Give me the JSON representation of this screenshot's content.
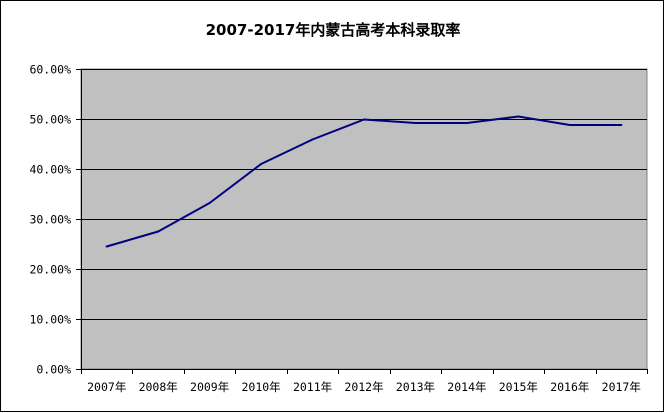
{
  "chart_data": {
    "type": "line",
    "title": "2007-2017年内蒙古高考本科录取率",
    "xlabel": "",
    "ylabel": "",
    "categories": [
      "2007年",
      "2008年",
      "2009年",
      "2010年",
      "2011年",
      "2012年",
      "2013年",
      "2014年",
      "2015年",
      "2016年",
      "2017年"
    ],
    "series": [
      {
        "values": [
          24.5,
          27.5,
          33.2,
          41.0,
          45.9,
          49.9,
          49.2,
          49.2,
          50.5,
          48.8,
          48.8
        ],
        "color": "#000080"
      }
    ],
    "ylim": [
      0,
      60
    ],
    "yticks": [
      0,
      10,
      20,
      30,
      40,
      50,
      60
    ],
    "ytick_labels": [
      "0.00%",
      "10.00%",
      "20.00%",
      "30.00%",
      "40.00%",
      "50.00%",
      "60.00%"
    ],
    "grid": true,
    "legend": "none",
    "plot_background": "#c0c0c0",
    "gridline_color": "#000000"
  }
}
